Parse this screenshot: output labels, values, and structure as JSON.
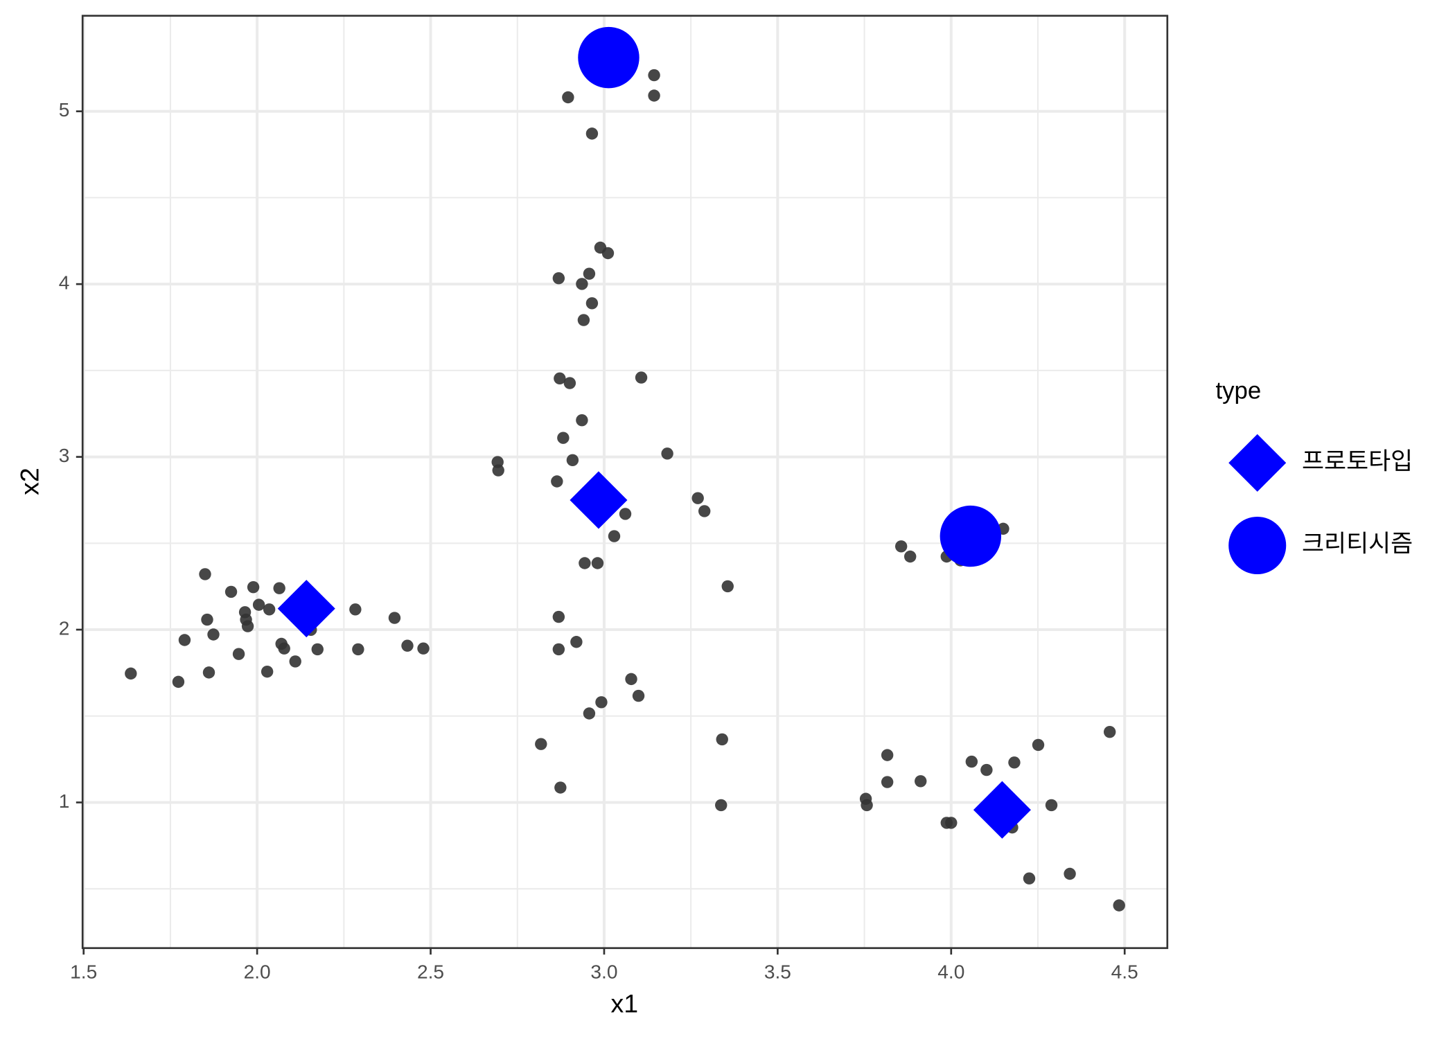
{
  "chart_data": {
    "type": "scatter",
    "xlabel": "x1",
    "ylabel": "x2",
    "xlim": [
      1.497,
      4.623
    ],
    "ylim": [
      0.157,
      5.553
    ],
    "xticks": [
      {
        "value": 1.5,
        "label": "1.5"
      },
      {
        "value": 2,
        "label": "2.0"
      },
      {
        "value": 2.5,
        "label": "2.5"
      },
      {
        "value": 3,
        "label": "3.0"
      },
      {
        "value": 3.5,
        "label": "3.5"
      },
      {
        "value": 4,
        "label": "4.0"
      },
      {
        "value": 4.5,
        "label": "4.5"
      }
    ],
    "yticks": [
      1,
      2,
      3,
      4,
      5
    ],
    "x_minor_ticks": [
      1.75,
      2.25,
      2.75,
      3.25,
      3.75,
      4.25
    ],
    "y_minor_ticks": [
      0.5,
      1.5,
      2.5,
      3.5,
      4.5
    ],
    "grid": true,
    "points": {
      "color": "#333333",
      "x": [
        3.144,
        3.144,
        2.896,
        2.965,
        2.989,
        3.011,
        2.869,
        2.957,
        2.936,
        2.965,
        2.941,
        2.872,
        2.901,
        3.107,
        2.936,
        2.882,
        2.693,
        2.695,
        2.909,
        3.182,
        2.864,
        3.27,
        3.289,
        3.061,
        3.029,
        2.944,
        2.981,
        3.356,
        2.869,
        2.869,
        2.92,
        3.078,
        3.099,
        2.992,
        2.957,
        2.818,
        2.874,
        3.34,
        3.337,
        1.85,
        1.925,
        1.989,
        2.064,
        1.856,
        1.965,
        1.968,
        1.973,
        2.005,
        2.035,
        1.791,
        1.874,
        1.636,
        1.773,
        1.861,
        1.947,
        2.029,
        2.07,
        2.078,
        2.11,
        2.155,
        2.174,
        2.283,
        2.291,
        2.396,
        2.433,
        2.479,
        3.856,
        3.882,
        3.987,
        4.027,
        4.15,
        3.816,
        3.816,
        3.912,
        3.754,
        3.757,
        4.059,
        4.102,
        4.182,
        4.251,
        4.289,
        3.987,
        4.0,
        4.176,
        4.457,
        4.225,
        4.342,
        4.484
      ],
      "y": [
        5.209,
        5.091,
        5.081,
        4.871,
        4.211,
        4.179,
        4.034,
        4.06,
        4.001,
        3.889,
        3.792,
        3.454,
        3.427,
        3.459,
        3.212,
        3.11,
        2.97,
        2.922,
        2.981,
        3.019,
        2.858,
        2.761,
        2.686,
        2.67,
        2.541,
        2.385,
        2.385,
        2.251,
        2.074,
        1.886,
        1.929,
        1.714,
        1.617,
        1.58,
        1.515,
        1.338,
        1.086,
        1.365,
        0.984,
        2.321,
        2.219,
        2.246,
        2.24,
        2.058,
        2.101,
        2.058,
        2.02,
        2.144,
        2.117,
        1.94,
        1.972,
        1.746,
        1.698,
        1.752,
        1.859,
        1.757,
        1.918,
        1.891,
        1.816,
        1.999,
        1.886,
        2.117,
        1.886,
        2.068,
        1.907,
        1.891,
        2.482,
        2.423,
        2.423,
        2.401,
        2.584,
        1.274,
        1.118,
        1.123,
        1.021,
        0.984,
        1.236,
        1.188,
        1.231,
        1.333,
        0.984,
        0.882,
        0.882,
        0.855,
        1.408,
        0.56,
        0.587,
        0.404
      ]
    },
    "legend_title": "type",
    "series": [
      {
        "name": "프로토타입",
        "color": "#0000ff",
        "marker": "diamond",
        "x": [
          2.142,
          2.984,
          4.147
        ],
        "y": [
          2.122,
          2.75,
          0.957
        ]
      },
      {
        "name": "크리티시즘",
        "color": "#0000ff",
        "marker": "circle",
        "x": [
          3.013,
          4.056
        ],
        "y": [
          5.311,
          2.541
        ]
      }
    ]
  }
}
